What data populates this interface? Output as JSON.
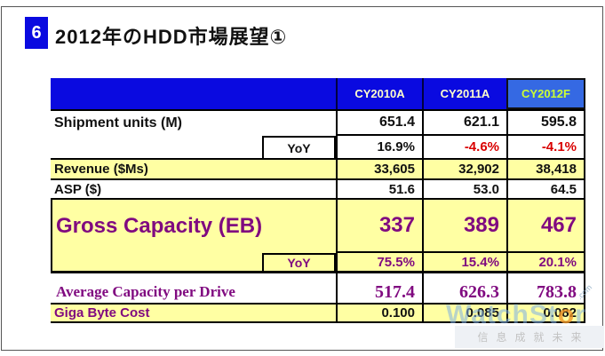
{
  "slide": {
    "number": "6",
    "title": "2012年のHDD市場展望①"
  },
  "table": {
    "columns": [
      "CY2010A",
      "CY2011A",
      "CY2012F"
    ],
    "rows": [
      {
        "label": "Shipment units (M)",
        "values": [
          "651.4",
          "621.1",
          "595.8"
        ]
      },
      {
        "label": "YoY",
        "values": [
          "16.9%",
          "-4.6%",
          "-4.1%"
        ]
      },
      {
        "label": "Revenue ($Ms)",
        "values": [
          "33,605",
          "32,902",
          "38,418"
        ]
      },
      {
        "label": "ASP ($)",
        "values": [
          "51.6",
          "53.0",
          "64.5"
        ]
      },
      {
        "label": "Gross Capacity (EB)",
        "values": [
          "337",
          "389",
          "467"
        ]
      },
      {
        "label": "YoY",
        "values": [
          "75.5%",
          "15.4%",
          "20.1%"
        ]
      },
      {
        "label": "Average Capacity per Drive",
        "values": [
          "517.4",
          "626.3",
          "783.8"
        ]
      },
      {
        "label": "Giga Byte Cost",
        "values": [
          "0.100",
          "0.085",
          "0.082"
        ]
      }
    ]
  },
  "watermark": {
    "brand_prefix": "WatchSt",
    "brand_o": "o",
    "brand_suffix": "r",
    "brand_tld": ".com",
    "tagline": "信息成就未来"
  },
  "colors": {
    "header_blue": "#0a0ae0",
    "forecast_header_blue": "#3569e3",
    "header_text_yellow": "#ffffcc",
    "forecast_text_green": "#ccff33",
    "highlight_yellow": "#ffffa3",
    "accent_purple": "#800a80",
    "negative_red": "#d90000"
  }
}
